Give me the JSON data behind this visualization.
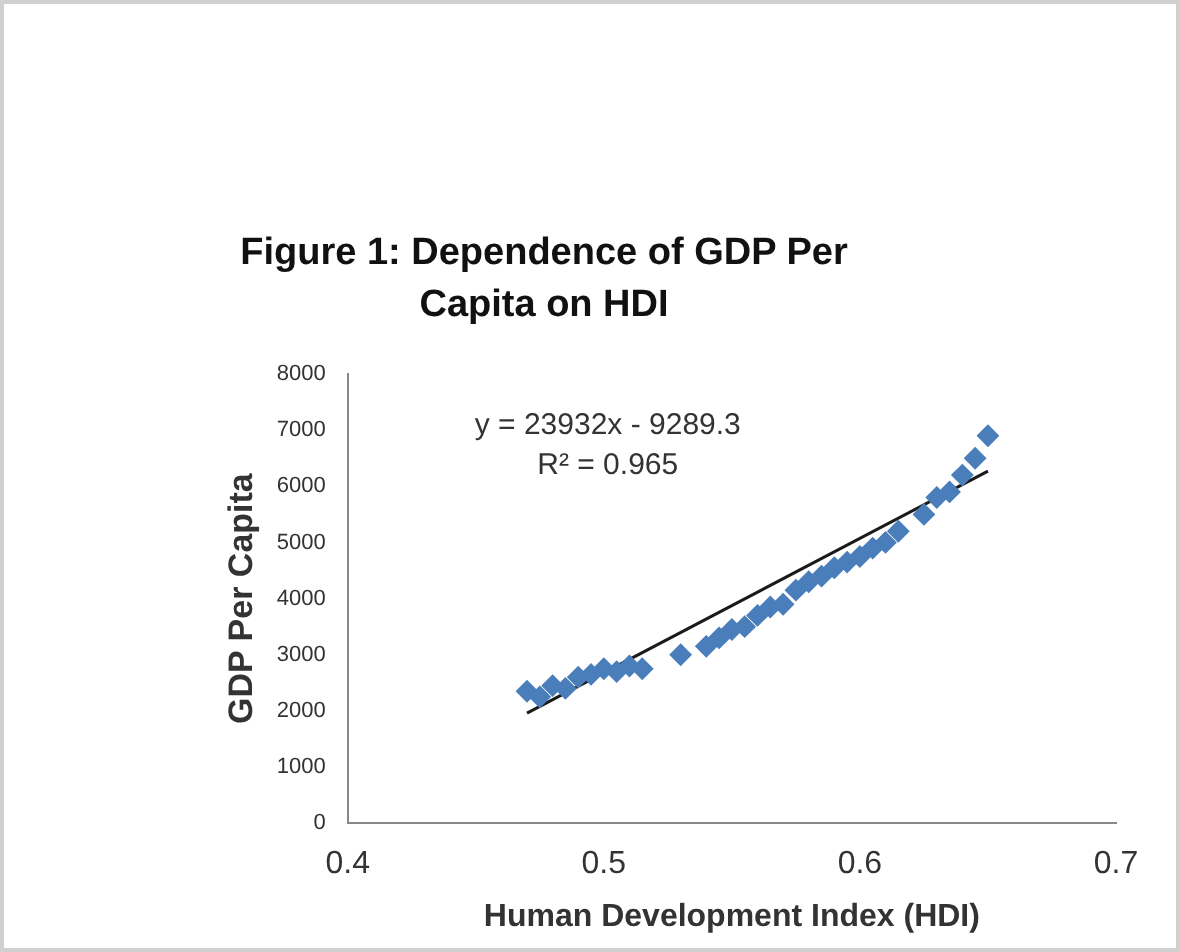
{
  "chart_data": {
    "type": "scatter",
    "title": "Figure 1: Dependence of GDP Per Capita on HDI",
    "xlabel": "Human Development Index (HDI)",
    "ylabel": "GDP Per Capita",
    "annotations": [
      "y = 23932x - 9289.3",
      "R² = 0.965"
    ],
    "xlim": [
      0.4,
      0.7
    ],
    "xticks": [
      0.4,
      0.5,
      0.6,
      0.7
    ],
    "ylim": [
      0,
      8000
    ],
    "yticks": [
      0,
      1000,
      2000,
      3000,
      4000,
      5000,
      6000,
      7000,
      8000
    ],
    "grid": false,
    "legend": false,
    "series": [
      {
        "type": "scatter",
        "color": "#4a7ebb",
        "marker": "diamond",
        "x": [
          0.47,
          0.475,
          0.48,
          0.485,
          0.49,
          0.495,
          0.5,
          0.505,
          0.51,
          0.515,
          0.53,
          0.54,
          0.545,
          0.55,
          0.555,
          0.56,
          0.565,
          0.57,
          0.575,
          0.58,
          0.585,
          0.59,
          0.595,
          0.6,
          0.605,
          0.61,
          0.615,
          0.625,
          0.63,
          0.635,
          0.64,
          0.645,
          0.65
        ],
        "values": [
          2350,
          2250,
          2450,
          2400,
          2600,
          2650,
          2750,
          2700,
          2800,
          2750,
          3000,
          3150,
          3300,
          3450,
          3500,
          3700,
          3850,
          3900,
          4150,
          4300,
          4400,
          4550,
          4650,
          4750,
          4900,
          5000,
          5200,
          5500,
          5800,
          5900,
          6200,
          6500,
          6900
        ]
      },
      {
        "type": "line",
        "color": "#1a1a1a",
        "x": [
          0.47,
          0.65
        ],
        "values": [
          1960,
          6270
        ]
      }
    ]
  }
}
